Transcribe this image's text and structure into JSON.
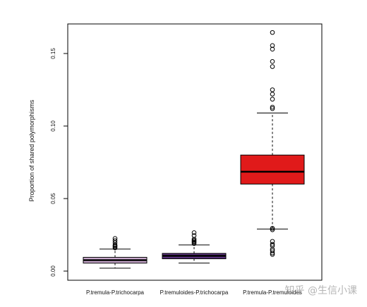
{
  "chart_data": {
    "type": "boxplot",
    "ylabel": "Proportion of shared polymorphisms",
    "ylim": [
      -0.002,
      0.17
    ],
    "yticks": [
      0.0,
      0.05,
      0.1,
      0.15
    ],
    "ytick_labels": [
      "0.00",
      "0.05",
      "0.10",
      "0.15"
    ],
    "categories": [
      "P.tremula-P.trichocarpa",
      "P.tremuloides-P.trichocarpa",
      "P.tremula-P.tremuloides"
    ],
    "series": [
      {
        "name": "P.tremula-P.trichocarpa",
        "color": "#c8a8cc",
        "whisker_low": 0.002,
        "q1": 0.0055,
        "median": 0.0075,
        "q3": 0.0095,
        "whisker_high": 0.0152,
        "outliers": [
          0.016,
          0.0168,
          0.0175,
          0.018,
          0.0195,
          0.021,
          0.0225
        ]
      },
      {
        "name": "P.tremuloides-P.trichocarpa",
        "color": "#58317a",
        "whisker_low": 0.0055,
        "q1": 0.0085,
        "median": 0.0105,
        "q3": 0.0122,
        "whisker_high": 0.018,
        "outliers": [
          0.019,
          0.0198,
          0.0205,
          0.0212,
          0.022,
          0.0245,
          0.0265
        ]
      },
      {
        "name": "P.tremula-P.tremuloides",
        "color": "#e01a1a",
        "whisker_low": 0.029,
        "q1": 0.06,
        "median": 0.0685,
        "q3": 0.08,
        "whisker_high": 0.109,
        "outliers": [
          0.0285,
          0.0295,
          0.0205,
          0.0185,
          0.0175,
          0.015,
          0.014,
          0.0125,
          0.0115,
          0.112,
          0.113,
          0.1185,
          0.122,
          0.125,
          0.141,
          0.1445,
          0.153,
          0.1555,
          0.1645
        ]
      }
    ],
    "grid": false,
    "legend": "none"
  },
  "watermark": "知乎 @生信小课"
}
